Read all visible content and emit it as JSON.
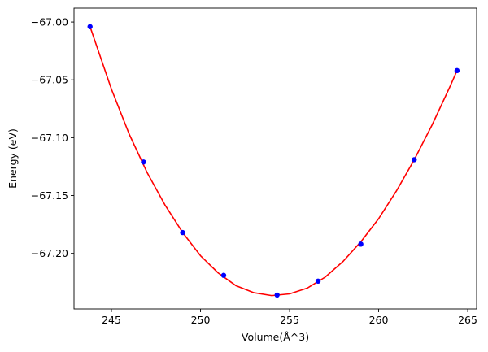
{
  "chart_data": {
    "type": "scatter",
    "xlabel": "Volume(Å^3)",
    "ylabel": "Energy (eV)",
    "xlim": [
      242.9,
      265.5
    ],
    "ylim": [
      -67.248,
      -66.988
    ],
    "xticks": [
      245,
      250,
      255,
      260,
      265
    ],
    "xtick_labels": [
      "245",
      "250",
      "255",
      "260",
      "265"
    ],
    "yticks": [
      -67.0,
      -67.05,
      -67.1,
      -67.15,
      -67.2
    ],
    "ytick_labels": [
      "−67.00",
      "−67.05",
      "−67.10",
      "−67.15",
      "−67.20"
    ],
    "grid": false,
    "series": [
      {
        "kind": "points",
        "color": "#0000ff",
        "x": [
          243.8,
          246.8,
          249.0,
          251.3,
          254.3,
          256.6,
          259.0,
          262.0,
          264.4
        ],
        "y": [
          -67.004,
          -67.121,
          -67.182,
          -67.219,
          -67.236,
          -67.224,
          -67.192,
          -67.119,
          -67.042
        ]
      },
      {
        "kind": "fit-curve",
        "color": "#ff0000",
        "x": [
          243.8,
          245.0,
          246.0,
          247.0,
          248.0,
          249.0,
          250.0,
          251.0,
          252.0,
          253.0,
          254.0,
          255.0,
          256.0,
          257.0,
          258.0,
          259.0,
          260.0,
          261.0,
          262.0,
          263.0,
          264.0,
          264.4
        ],
        "y": [
          -67.004,
          -67.058,
          -67.097,
          -67.13,
          -67.158,
          -67.182,
          -67.202,
          -67.217,
          -67.228,
          -67.234,
          -67.2365,
          -67.235,
          -67.23,
          -67.2205,
          -67.207,
          -67.19,
          -67.17,
          -67.146,
          -67.119,
          -67.089,
          -67.056,
          -67.042
        ]
      }
    ]
  }
}
